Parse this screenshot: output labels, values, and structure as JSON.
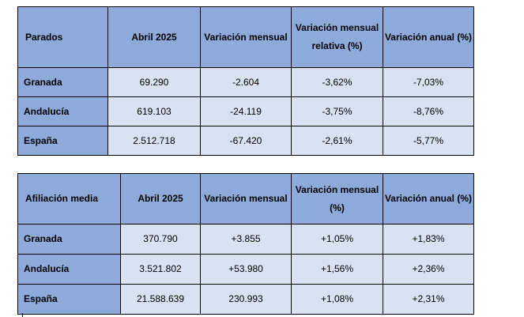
{
  "tables": [
    {
      "headers": [
        "Parados",
        "Abril 2025",
        "Variación mensual",
        "Variación mensual relativa (%)",
        "Variación anual (%)"
      ],
      "rows": [
        {
          "label": "Granada",
          "values": [
            "69.290",
            "-2.604",
            "-3,62%",
            "-7,03%"
          ]
        },
        {
          "label": "Andalucía",
          "values": [
            "619.103",
            "-24.119",
            "-3,75%",
            "-8,76%"
          ]
        },
        {
          "label": "España",
          "values": [
            "2.512.718",
            "-67.420",
            "-2,61%",
            "-5,77%"
          ]
        }
      ]
    },
    {
      "headers": [
        "Afiliación media",
        "Abril 2025",
        "Variación mensual",
        "Variación mensual (%)",
        "Variación anual (%)"
      ],
      "rows": [
        {
          "label": "Granada",
          "values": [
            "370.790",
            "+3.855",
            "+1,05%",
            "+1,83%"
          ]
        },
        {
          "label": "Andalucía",
          "values": [
            "3.521.802",
            "+53.980",
            "+1,56%",
            "+2,36%"
          ]
        },
        {
          "label": "España",
          "values": [
            "21.588.639",
            "230.993",
            "+1,08%",
            "+2,31%"
          ]
        }
      ]
    }
  ]
}
